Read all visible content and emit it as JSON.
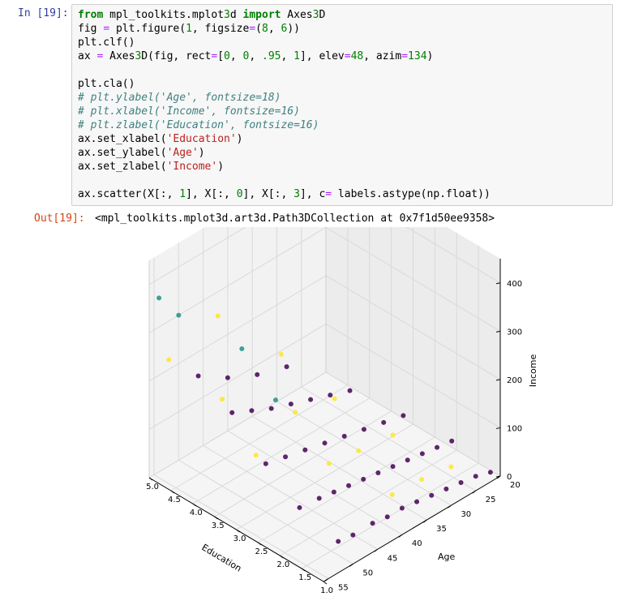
{
  "cell": {
    "in_prompt": "In [19]:",
    "out_prompt": "Out[19]:",
    "output_text": "<mpl_toolkits.mplot3d.art3d.Path3DCollection at 0x7f1d50ee9358>",
    "code_lines": [
      "from mpl_toolkits.mplot3d import Axes3D",
      "fig = plt.figure(1, figsize=(8, 6))",
      "plt.clf()",
      "ax = Axes3D(fig, rect=[0, 0, .95, 1], elev=48, azim=134)",
      "",
      "plt.cla()",
      "# plt.ylabel('Age', fontsize=18)",
      "# plt.xlabel('Income', fontsize=16)",
      "# plt.zlabel('Education', fontsize=16)",
      "ax.set_xlabel('Education')",
      "ax.set_ylabel('Age')",
      "ax.set_zlabel('Income')",
      "",
      "ax.scatter(X[:, 1], X[:, 0], X[:, 3], c= labels.astype(np.float))"
    ]
  },
  "chart_data": {
    "type": "scatter",
    "title": "",
    "xlabel": "Education",
    "ylabel": "Age",
    "zlabel": "Income",
    "x_ticks": [
      "1.0",
      "1.5",
      "2.0",
      "2.5",
      "3.0",
      "3.5",
      "4.0",
      "4.5",
      "5.0"
    ],
    "y_ticks": [
      "20",
      "25",
      "30",
      "35",
      "40",
      "45",
      "50",
      "55"
    ],
    "z_ticks": [
      "0",
      "100",
      "200",
      "300",
      "400"
    ],
    "xlim": [
      1.0,
      5.0
    ],
    "ylim": [
      20,
      56
    ],
    "zlim": [
      0,
      450
    ],
    "colors": {
      "cluster_0": "#440154",
      "cluster_1": "#21918c",
      "cluster_2": "#fde725"
    },
    "points": [
      {
        "x": 1,
        "y": 22,
        "z": 20,
        "c": 0
      },
      {
        "x": 1,
        "y": 25,
        "z": 30,
        "c": 0
      },
      {
        "x": 1,
        "y": 28,
        "z": 35,
        "c": 0
      },
      {
        "x": 1,
        "y": 31,
        "z": 40,
        "c": 0
      },
      {
        "x": 1,
        "y": 34,
        "z": 45,
        "c": 0
      },
      {
        "x": 1,
        "y": 37,
        "z": 50,
        "c": 0
      },
      {
        "x": 1,
        "y": 40,
        "z": 55,
        "c": 0
      },
      {
        "x": 1,
        "y": 43,
        "z": 55,
        "c": 0
      },
      {
        "x": 1,
        "y": 46,
        "z": 60,
        "c": 0
      },
      {
        "x": 1,
        "y": 50,
        "z": 60,
        "c": 0
      },
      {
        "x": 1,
        "y": 53,
        "z": 65,
        "c": 0
      },
      {
        "x": 1,
        "y": 30,
        "z": 80,
        "c": 2
      },
      {
        "x": 1,
        "y": 36,
        "z": 90,
        "c": 2
      },
      {
        "x": 1,
        "y": 42,
        "z": 95,
        "c": 2
      },
      {
        "x": 2,
        "y": 21,
        "z": 25,
        "c": 0
      },
      {
        "x": 2,
        "y": 24,
        "z": 30,
        "c": 0
      },
      {
        "x": 2,
        "y": 27,
        "z": 35,
        "c": 0
      },
      {
        "x": 2,
        "y": 30,
        "z": 40,
        "c": 0
      },
      {
        "x": 2,
        "y": 33,
        "z": 45,
        "c": 0
      },
      {
        "x": 2,
        "y": 36,
        "z": 50,
        "c": 0
      },
      {
        "x": 2,
        "y": 39,
        "z": 55,
        "c": 0
      },
      {
        "x": 2,
        "y": 42,
        "z": 60,
        "c": 0
      },
      {
        "x": 2,
        "y": 45,
        "z": 65,
        "c": 0
      },
      {
        "x": 2,
        "y": 48,
        "z": 70,
        "c": 0
      },
      {
        "x": 2,
        "y": 52,
        "z": 75,
        "c": 0
      },
      {
        "x": 2,
        "y": 33,
        "z": 110,
        "c": 2
      },
      {
        "x": 2,
        "y": 40,
        "z": 120,
        "c": 2
      },
      {
        "x": 2,
        "y": 46,
        "z": 130,
        "c": 2
      },
      {
        "x": 3,
        "y": 22,
        "z": 30,
        "c": 0
      },
      {
        "x": 3,
        "y": 26,
        "z": 40,
        "c": 0
      },
      {
        "x": 3,
        "y": 30,
        "z": 50,
        "c": 0
      },
      {
        "x": 3,
        "y": 34,
        "z": 60,
        "c": 0
      },
      {
        "x": 3,
        "y": 38,
        "z": 70,
        "c": 0
      },
      {
        "x": 3,
        "y": 42,
        "z": 80,
        "c": 0
      },
      {
        "x": 3,
        "y": 46,
        "z": 90,
        "c": 0
      },
      {
        "x": 3,
        "y": 50,
        "z": 100,
        "c": 0
      },
      {
        "x": 3,
        "y": 36,
        "z": 150,
        "c": 2
      },
      {
        "x": 3,
        "y": 44,
        "z": 170,
        "c": 2
      },
      {
        "x": 3,
        "y": 48,
        "z": 220,
        "c": 1
      },
      {
        "x": 3,
        "y": 52,
        "z": 130,
        "c": 2
      },
      {
        "x": 4,
        "y": 24,
        "z": 40,
        "c": 0
      },
      {
        "x": 4,
        "y": 28,
        "z": 55,
        "c": 0
      },
      {
        "x": 4,
        "y": 32,
        "z": 70,
        "c": 0
      },
      {
        "x": 4,
        "y": 36,
        "z": 85,
        "c": 0
      },
      {
        "x": 4,
        "y": 40,
        "z": 100,
        "c": 0
      },
      {
        "x": 4,
        "y": 44,
        "z": 120,
        "c": 0
      },
      {
        "x": 4,
        "y": 48,
        "z": 140,
        "c": 0
      },
      {
        "x": 4,
        "y": 38,
        "z": 200,
        "c": 2
      },
      {
        "x": 4,
        "y": 46,
        "z": 260,
        "c": 1
      },
      {
        "x": 4,
        "y": 50,
        "z": 180,
        "c": 2
      },
      {
        "x": 5,
        "y": 28,
        "z": 60,
        "c": 0
      },
      {
        "x": 5,
        "y": 34,
        "z": 80,
        "c": 0
      },
      {
        "x": 5,
        "y": 40,
        "z": 110,
        "c": 0
      },
      {
        "x": 5,
        "y": 46,
        "z": 150,
        "c": 0
      },
      {
        "x": 5,
        "y": 42,
        "z": 250,
        "c": 2
      },
      {
        "x": 5,
        "y": 50,
        "z": 300,
        "c": 1
      },
      {
        "x": 5,
        "y": 54,
        "z": 360,
        "c": 1
      },
      {
        "x": 5,
        "y": 52,
        "z": 220,
        "c": 2
      }
    ]
  }
}
